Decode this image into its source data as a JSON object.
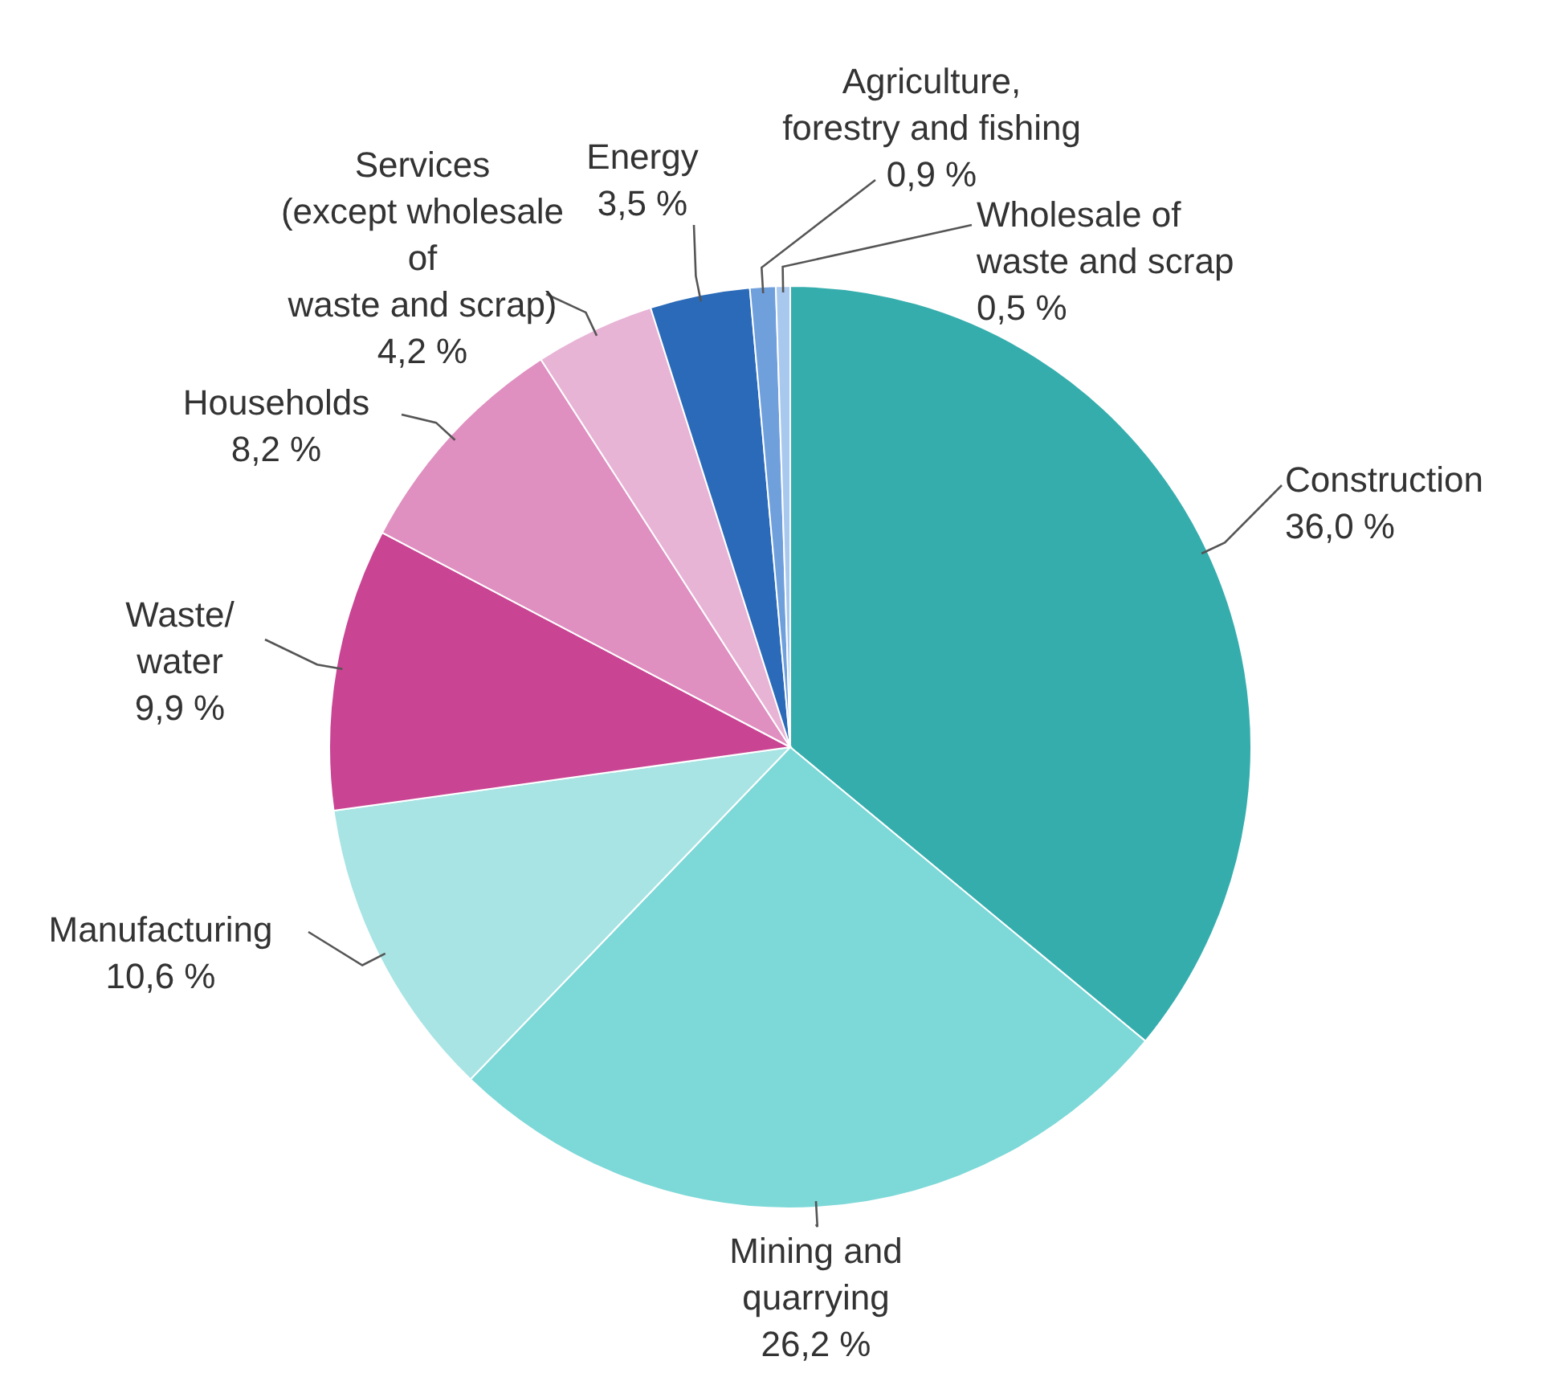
{
  "chart_data": {
    "type": "pie",
    "categories": [
      "Construction",
      "Mining and\nquarrying",
      "Manufacturing",
      "Waste/\nwater",
      "Households",
      "Services\n(except wholesale\nof\nwaste and scrap)",
      "Energy",
      "Agriculture,\nforestry and fishing",
      "Wholesale of\nwaste and scrap"
    ],
    "values": [
      36.0,
      26.2,
      10.6,
      9.9,
      8.2,
      4.2,
      3.5,
      0.9,
      0.5
    ],
    "colors": [
      "#36adad",
      "#7dd8d8",
      "#a8e4e4",
      "#c94593",
      "#df8fc0",
      "#e8b4d6",
      "#2a6ab8",
      "#6fa0dc",
      "#a9c8ee"
    ],
    "value_labels": [
      "36,0 %",
      "26,2 %",
      "10,6 %",
      "9,9 %",
      "8,2 %",
      "4,2 %",
      "3,5 %",
      "0,9 %",
      "0,5 %"
    ]
  }
}
